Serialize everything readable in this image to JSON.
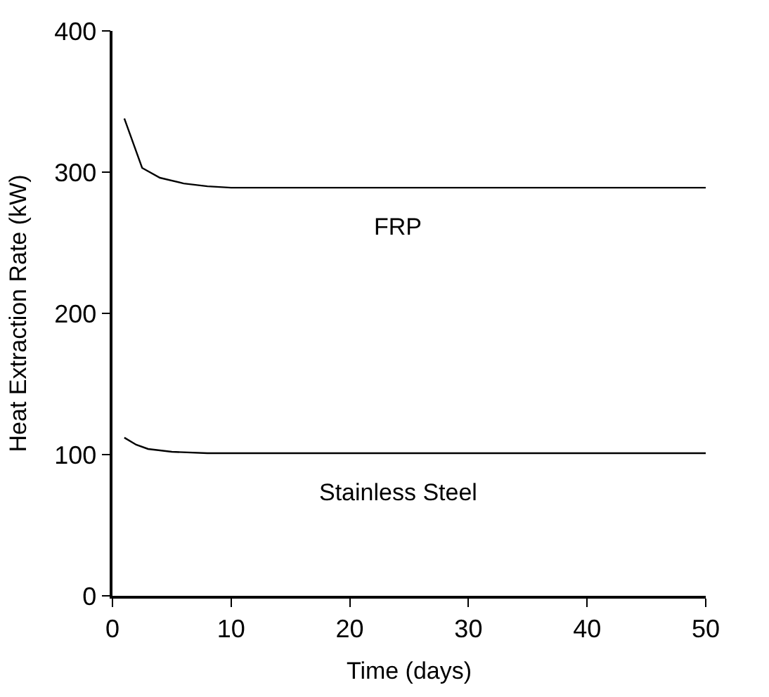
{
  "chart_data": {
    "type": "line",
    "xlabel": "Time (days)",
    "ylabel": "Heat Extraction Rate (kW)",
    "xlim": [
      0,
      50
    ],
    "xticks": [
      0,
      10,
      20,
      30,
      40,
      50
    ],
    "ylim": [
      0,
      400
    ],
    "yticks": [
      0,
      100,
      200,
      300,
      400
    ],
    "legend": false,
    "marker": "none",
    "line_style": "solid",
    "series": [
      {
        "name": "FRP",
        "color": "#000000",
        "x": [
          1,
          2.5,
          4,
          6,
          8,
          10,
          20,
          30,
          40,
          50
        ],
        "values": [
          338,
          303,
          296,
          292,
          290,
          289,
          289,
          289,
          289,
          289
        ]
      },
      {
        "name": "Stainless Steel",
        "color": "#000000",
        "x": [
          1,
          2,
          3,
          5,
          8,
          10,
          20,
          30,
          40,
          50
        ],
        "values": [
          112,
          107,
          104,
          102,
          101,
          101,
          101,
          101,
          101,
          101
        ]
      }
    ]
  }
}
